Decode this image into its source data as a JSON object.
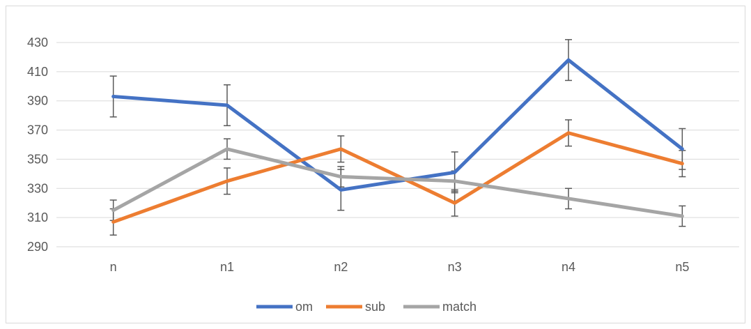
{
  "chart_data": {
    "type": "line",
    "title": "",
    "xlabel": "",
    "ylabel": "",
    "categories": [
      "n",
      "n1",
      "n2",
      "n3",
      "n4",
      "n5"
    ],
    "ylim": [
      290,
      430
    ],
    "yticks": [
      290,
      310,
      330,
      350,
      370,
      390,
      410,
      430
    ],
    "grid": true,
    "legend": "bottom",
    "series": [
      {
        "name": "om",
        "color": "#4472c4",
        "values": [
          393,
          387,
          329,
          341,
          418,
          357
        ],
        "error": [
          14,
          14,
          14,
          14,
          14,
          14
        ]
      },
      {
        "name": "sub",
        "color": "#ed7d31",
        "values": [
          307,
          335,
          357,
          320,
          368,
          347
        ],
        "error": [
          9,
          9,
          9,
          9,
          9,
          9
        ]
      },
      {
        "name": "match",
        "color": "#a5a5a5",
        "values": [
          315,
          357,
          338,
          335,
          323,
          311
        ],
        "error": [
          7,
          7,
          7,
          7,
          7,
          7
        ]
      }
    ]
  }
}
